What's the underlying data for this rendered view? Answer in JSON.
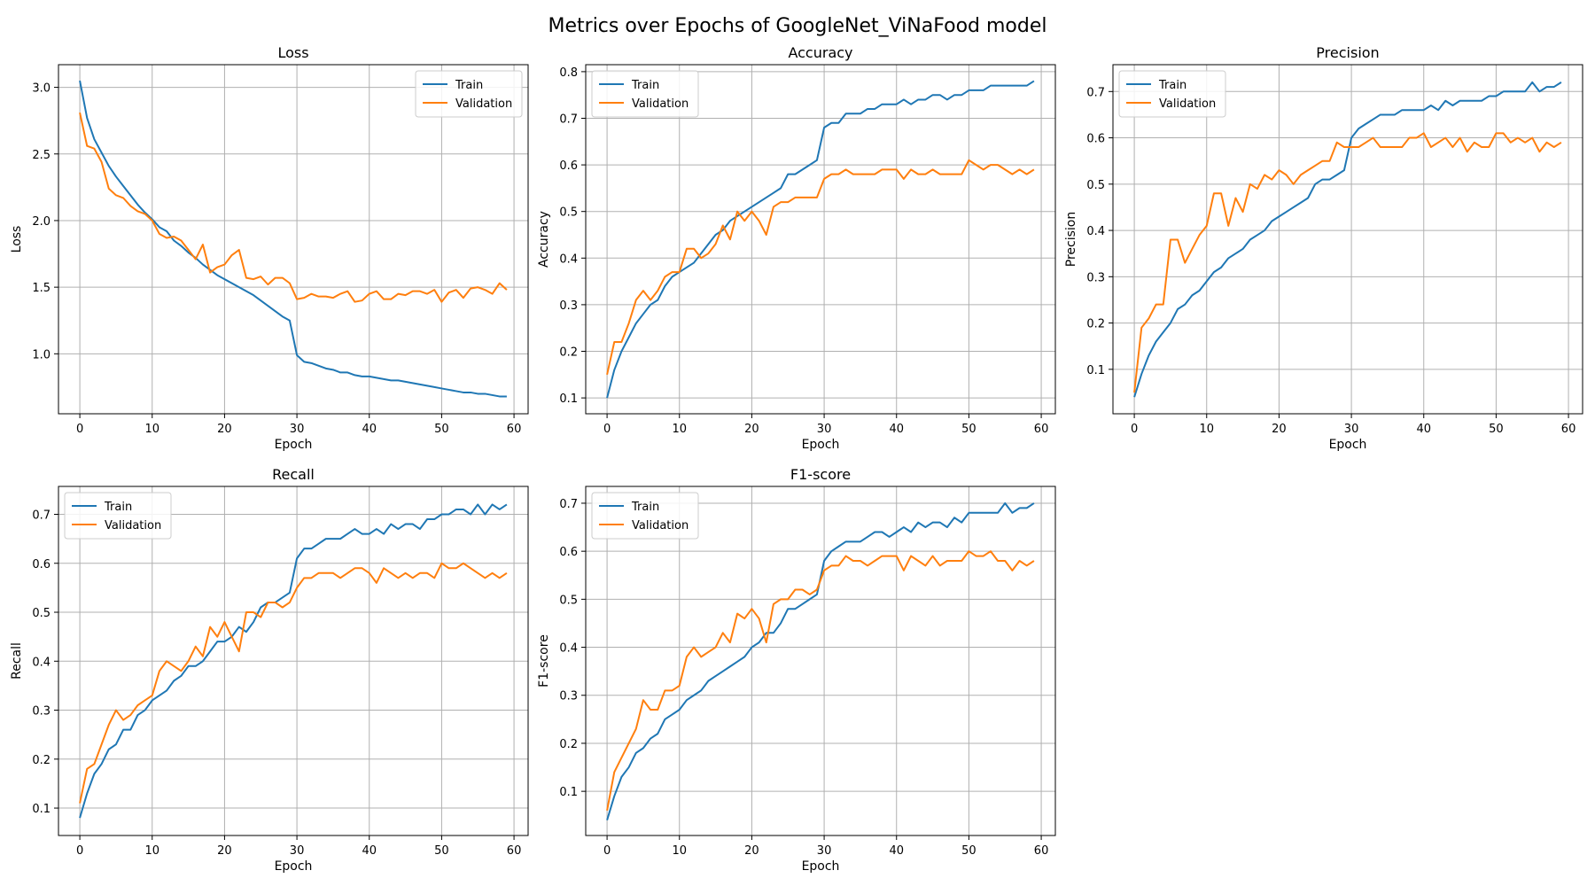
{
  "figure": {
    "title": "Metrics over Epochs of GoogleNet_ViNaFood model"
  },
  "colors": {
    "train": "#1f77b4",
    "validation": "#ff7f0e",
    "grid": "#b0b0b0"
  },
  "chart_data": [
    {
      "type": "line",
      "title": "Loss",
      "xlabel": "Epoch",
      "ylabel": "Loss",
      "xlim": [
        -2.95,
        61.95
      ],
      "ylim": [
        0.55,
        3.17
      ],
      "xticks": [
        0,
        10,
        20,
        30,
        40,
        50,
        60
      ],
      "yticks": [
        1.0,
        1.5,
        2.0,
        2.5,
        3.0
      ],
      "ytick_labels": [
        "1.0",
        "1.5",
        "2.0",
        "2.5",
        "3.0"
      ],
      "grid": true,
      "legend": "upper right",
      "series": [
        {
          "name": "Train",
          "values": [
            3.05,
            2.77,
            2.61,
            2.51,
            2.41,
            2.33,
            2.26,
            2.19,
            2.12,
            2.06,
            2.01,
            1.95,
            1.92,
            1.85,
            1.81,
            1.76,
            1.72,
            1.67,
            1.63,
            1.59,
            1.56,
            1.53,
            1.5,
            1.47,
            1.44,
            1.4,
            1.36,
            1.32,
            1.28,
            1.25,
            0.99,
            0.94,
            0.93,
            0.91,
            0.89,
            0.88,
            0.86,
            0.86,
            0.84,
            0.83,
            0.83,
            0.82,
            0.81,
            0.8,
            0.8,
            0.79,
            0.78,
            0.77,
            0.76,
            0.75,
            0.74,
            0.73,
            0.72,
            0.71,
            0.71,
            0.7,
            0.7,
            0.69,
            0.68,
            0.68
          ]
        },
        {
          "name": "Validation",
          "values": [
            2.81,
            2.56,
            2.54,
            2.44,
            2.24,
            2.19,
            2.17,
            2.11,
            2.07,
            2.05,
            2.0,
            1.9,
            1.87,
            1.88,
            1.85,
            1.78,
            1.71,
            1.82,
            1.61,
            1.65,
            1.67,
            1.74,
            1.78,
            1.57,
            1.56,
            1.58,
            1.52,
            1.57,
            1.57,
            1.53,
            1.41,
            1.42,
            1.45,
            1.43,
            1.43,
            1.42,
            1.45,
            1.47,
            1.39,
            1.4,
            1.45,
            1.47,
            1.41,
            1.41,
            1.45,
            1.44,
            1.47,
            1.47,
            1.45,
            1.48,
            1.39,
            1.46,
            1.48,
            1.42,
            1.49,
            1.5,
            1.48,
            1.45,
            1.53,
            1.48
          ]
        }
      ]
    },
    {
      "type": "line",
      "title": "Accuracy",
      "xlabel": "Epoch",
      "ylabel": "Accuracy",
      "xlim": [
        -2.95,
        61.95
      ],
      "ylim": [
        0.066,
        0.815
      ],
      "xticks": [
        0,
        10,
        20,
        30,
        40,
        50,
        60
      ],
      "yticks": [
        0.1,
        0.2,
        0.3,
        0.4,
        0.5,
        0.6,
        0.7,
        0.8
      ],
      "ytick_labels": [
        "0.1",
        "0.2",
        "0.3",
        "0.4",
        "0.5",
        "0.6",
        "0.7",
        "0.8"
      ],
      "grid": true,
      "legend": "upper left",
      "series": [
        {
          "name": "Train",
          "values": [
            0.1,
            0.16,
            0.2,
            0.23,
            0.26,
            0.28,
            0.3,
            0.31,
            0.34,
            0.36,
            0.37,
            0.38,
            0.39,
            0.41,
            0.43,
            0.45,
            0.46,
            0.48,
            0.49,
            0.5,
            0.51,
            0.52,
            0.53,
            0.54,
            0.55,
            0.58,
            0.58,
            0.59,
            0.6,
            0.61,
            0.68,
            0.69,
            0.69,
            0.71,
            0.71,
            0.71,
            0.72,
            0.72,
            0.73,
            0.73,
            0.73,
            0.74,
            0.73,
            0.74,
            0.74,
            0.75,
            0.75,
            0.74,
            0.75,
            0.75,
            0.76,
            0.76,
            0.76,
            0.77,
            0.77,
            0.77,
            0.77,
            0.77,
            0.77,
            0.78
          ]
        },
        {
          "name": "Validation",
          "values": [
            0.15,
            0.22,
            0.22,
            0.26,
            0.31,
            0.33,
            0.31,
            0.33,
            0.36,
            0.37,
            0.37,
            0.42,
            0.42,
            0.4,
            0.41,
            0.43,
            0.47,
            0.44,
            0.5,
            0.48,
            0.5,
            0.48,
            0.45,
            0.51,
            0.52,
            0.52,
            0.53,
            0.53,
            0.53,
            0.53,
            0.57,
            0.58,
            0.58,
            0.59,
            0.58,
            0.58,
            0.58,
            0.58,
            0.59,
            0.59,
            0.59,
            0.57,
            0.59,
            0.58,
            0.58,
            0.59,
            0.58,
            0.58,
            0.58,
            0.58,
            0.61,
            0.6,
            0.59,
            0.6,
            0.6,
            0.59,
            0.58,
            0.59,
            0.58,
            0.59
          ]
        }
      ]
    },
    {
      "type": "line",
      "title": "Precision",
      "xlabel": "Epoch",
      "ylabel": "Precision",
      "xlim": [
        -2.95,
        61.95
      ],
      "ylim": [
        0.004,
        0.758
      ],
      "xticks": [
        0,
        10,
        20,
        30,
        40,
        50,
        60
      ],
      "yticks": [
        0.1,
        0.2,
        0.3,
        0.4,
        0.5,
        0.6,
        0.7
      ],
      "ytick_labels": [
        "0.1",
        "0.2",
        "0.3",
        "0.4",
        "0.5",
        "0.6",
        "0.7"
      ],
      "grid": true,
      "legend": "upper left",
      "series": [
        {
          "name": "Train",
          "values": [
            0.04,
            0.09,
            0.13,
            0.16,
            0.18,
            0.2,
            0.23,
            0.24,
            0.26,
            0.27,
            0.29,
            0.31,
            0.32,
            0.34,
            0.35,
            0.36,
            0.38,
            0.39,
            0.4,
            0.42,
            0.43,
            0.44,
            0.45,
            0.46,
            0.47,
            0.5,
            0.51,
            0.51,
            0.52,
            0.53,
            0.6,
            0.62,
            0.63,
            0.64,
            0.65,
            0.65,
            0.65,
            0.66,
            0.66,
            0.66,
            0.66,
            0.67,
            0.66,
            0.68,
            0.67,
            0.68,
            0.68,
            0.68,
            0.68,
            0.69,
            0.69,
            0.7,
            0.7,
            0.7,
            0.7,
            0.72,
            0.7,
            0.71,
            0.71,
            0.72
          ]
        },
        {
          "name": "Validation",
          "values": [
            0.05,
            0.19,
            0.21,
            0.24,
            0.24,
            0.38,
            0.38,
            0.33,
            0.36,
            0.39,
            0.41,
            0.48,
            0.48,
            0.41,
            0.47,
            0.44,
            0.5,
            0.49,
            0.52,
            0.51,
            0.53,
            0.52,
            0.5,
            0.52,
            0.53,
            0.54,
            0.55,
            0.55,
            0.59,
            0.58,
            0.58,
            0.58,
            0.59,
            0.6,
            0.58,
            0.58,
            0.58,
            0.58,
            0.6,
            0.6,
            0.61,
            0.58,
            0.59,
            0.6,
            0.58,
            0.6,
            0.57,
            0.59,
            0.58,
            0.58,
            0.61,
            0.61,
            0.59,
            0.6,
            0.59,
            0.6,
            0.57,
            0.59,
            0.58,
            0.59
          ]
        }
      ]
    },
    {
      "type": "line",
      "title": "Recall",
      "xlabel": "Epoch",
      "ylabel": "Recall",
      "xlim": [
        -2.95,
        61.95
      ],
      "ylim": [
        0.044,
        0.757
      ],
      "xticks": [
        0,
        10,
        20,
        30,
        40,
        50,
        60
      ],
      "yticks": [
        0.1,
        0.2,
        0.3,
        0.4,
        0.5,
        0.6,
        0.7
      ],
      "ytick_labels": [
        "0.1",
        "0.2",
        "0.3",
        "0.4",
        "0.5",
        "0.6",
        "0.7"
      ],
      "grid": true,
      "legend": "upper left",
      "series": [
        {
          "name": "Train",
          "values": [
            0.08,
            0.13,
            0.17,
            0.19,
            0.22,
            0.23,
            0.26,
            0.26,
            0.29,
            0.3,
            0.32,
            0.33,
            0.34,
            0.36,
            0.37,
            0.39,
            0.39,
            0.4,
            0.42,
            0.44,
            0.44,
            0.45,
            0.47,
            0.46,
            0.48,
            0.51,
            0.52,
            0.52,
            0.53,
            0.54,
            0.61,
            0.63,
            0.63,
            0.64,
            0.65,
            0.65,
            0.65,
            0.66,
            0.67,
            0.66,
            0.66,
            0.67,
            0.66,
            0.68,
            0.67,
            0.68,
            0.68,
            0.67,
            0.69,
            0.69,
            0.7,
            0.7,
            0.71,
            0.71,
            0.7,
            0.72,
            0.7,
            0.72,
            0.71,
            0.72
          ]
        },
        {
          "name": "Validation",
          "values": [
            0.11,
            0.18,
            0.19,
            0.23,
            0.27,
            0.3,
            0.28,
            0.29,
            0.31,
            0.32,
            0.33,
            0.38,
            0.4,
            0.39,
            0.38,
            0.4,
            0.43,
            0.41,
            0.47,
            0.45,
            0.48,
            0.45,
            0.42,
            0.5,
            0.5,
            0.49,
            0.52,
            0.52,
            0.51,
            0.52,
            0.55,
            0.57,
            0.57,
            0.58,
            0.58,
            0.58,
            0.57,
            0.58,
            0.59,
            0.59,
            0.58,
            0.56,
            0.59,
            0.58,
            0.57,
            0.58,
            0.57,
            0.58,
            0.58,
            0.57,
            0.6,
            0.59,
            0.59,
            0.6,
            0.59,
            0.58,
            0.57,
            0.58,
            0.57,
            0.58
          ]
        }
      ]
    },
    {
      "type": "line",
      "title": "F1-score",
      "xlabel": "Epoch",
      "ylabel": "F1-score",
      "xlim": [
        -2.95,
        61.95
      ],
      "ylim": [
        0.008,
        0.735
      ],
      "xticks": [
        0,
        10,
        20,
        30,
        40,
        50,
        60
      ],
      "yticks": [
        0.1,
        0.2,
        0.3,
        0.4,
        0.5,
        0.6,
        0.7
      ],
      "ytick_labels": [
        "0.1",
        "0.2",
        "0.3",
        "0.4",
        "0.5",
        "0.6",
        "0.7"
      ],
      "grid": true,
      "legend": "upper left",
      "series": [
        {
          "name": "Train",
          "values": [
            0.04,
            0.09,
            0.13,
            0.15,
            0.18,
            0.19,
            0.21,
            0.22,
            0.25,
            0.26,
            0.27,
            0.29,
            0.3,
            0.31,
            0.33,
            0.34,
            0.35,
            0.36,
            0.37,
            0.38,
            0.4,
            0.41,
            0.43,
            0.43,
            0.45,
            0.48,
            0.48,
            0.49,
            0.5,
            0.51,
            0.58,
            0.6,
            0.61,
            0.62,
            0.62,
            0.62,
            0.63,
            0.64,
            0.64,
            0.63,
            0.64,
            0.65,
            0.64,
            0.66,
            0.65,
            0.66,
            0.66,
            0.65,
            0.67,
            0.66,
            0.68,
            0.68,
            0.68,
            0.68,
            0.68,
            0.7,
            0.68,
            0.69,
            0.69,
            0.7
          ]
        },
        {
          "name": "Validation",
          "values": [
            0.06,
            0.14,
            0.17,
            0.2,
            0.23,
            0.29,
            0.27,
            0.27,
            0.31,
            0.31,
            0.32,
            0.38,
            0.4,
            0.38,
            0.39,
            0.4,
            0.43,
            0.41,
            0.47,
            0.46,
            0.48,
            0.46,
            0.41,
            0.49,
            0.5,
            0.5,
            0.52,
            0.52,
            0.51,
            0.52,
            0.56,
            0.57,
            0.57,
            0.59,
            0.58,
            0.58,
            0.57,
            0.58,
            0.59,
            0.59,
            0.59,
            0.56,
            0.59,
            0.58,
            0.57,
            0.59,
            0.57,
            0.58,
            0.58,
            0.58,
            0.6,
            0.59,
            0.59,
            0.6,
            0.58,
            0.58,
            0.56,
            0.58,
            0.57,
            0.58
          ]
        }
      ]
    }
  ]
}
